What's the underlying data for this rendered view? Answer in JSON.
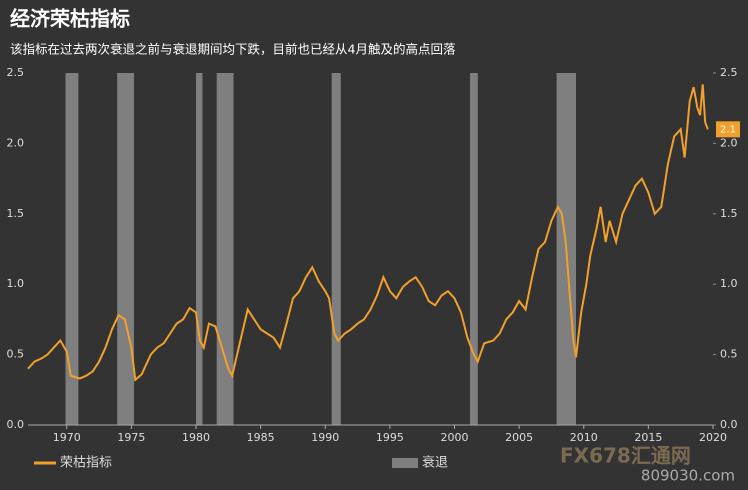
{
  "chart_data": {
    "type": "line",
    "title": "经济荣枯指标",
    "subtitle": "该指标在过去两次衰退之前与衰退期间均下跌，目前也已经从4月触及的高点回落",
    "x": [
      1967.0,
      1967.5,
      1968,
      1968.5,
      1969,
      1969.5,
      1970,
      1970.3,
      1971,
      1971.5,
      1972,
      1972.5,
      1973,
      1973.5,
      1974,
      1974.5,
      1975,
      1975.3,
      1975.8,
      1976.5,
      1977,
      1977.5,
      1978,
      1978.5,
      1979,
      1979.5,
      1980,
      1980.3,
      1980.6,
      1981,
      1981.5,
      1982,
      1982.5,
      1982.8,
      1983.3,
      1984,
      1984.5,
      1985,
      1985.5,
      1986,
      1986.5,
      1987,
      1987.5,
      1988,
      1988.5,
      1989,
      1989.5,
      1990,
      1990.3,
      1990.7,
      1991,
      1991.5,
      1992,
      1992.5,
      1993,
      1993.5,
      1994,
      1994.5,
      1995,
      1995.5,
      1996,
      1996.5,
      1997,
      1997.5,
      1998,
      1998.5,
      1999,
      1999.5,
      2000,
      2000.5,
      2001,
      2001.5,
      2001.8,
      2002.3,
      2003,
      2003.5,
      2004,
      2004.5,
      2005,
      2005.5,
      2006,
      2006.5,
      2007,
      2007.5,
      2008,
      2008.3,
      2008.6,
      2008.9,
      2009.2,
      2009.4,
      2009.8,
      2010.2,
      2010.5,
      2011,
      2011.3,
      2011.7,
      2012,
      2012.5,
      2013,
      2013.5,
      2014,
      2014.5,
      2015,
      2015.5,
      2016,
      2016.5,
      2017,
      2017.5,
      2017.8,
      2018.2,
      2018.5,
      2018.8,
      2019.0,
      2019.2,
      2019.4,
      2019.6
    ],
    "series": [
      {
        "name": "荣枯指标",
        "color": "#f2a02c",
        "values": [
          0.4,
          0.45,
          0.47,
          0.5,
          0.55,
          0.6,
          0.52,
          0.35,
          0.33,
          0.35,
          0.38,
          0.45,
          0.55,
          0.68,
          0.78,
          0.75,
          0.55,
          0.32,
          0.36,
          0.5,
          0.55,
          0.58,
          0.65,
          0.72,
          0.75,
          0.83,
          0.8,
          0.6,
          0.55,
          0.72,
          0.7,
          0.55,
          0.4,
          0.35,
          0.55,
          0.82,
          0.75,
          0.68,
          0.65,
          0.62,
          0.55,
          0.72,
          0.9,
          0.95,
          1.05,
          1.12,
          1.02,
          0.95,
          0.9,
          0.65,
          0.6,
          0.65,
          0.68,
          0.72,
          0.75,
          0.82,
          0.92,
          1.05,
          0.95,
          0.9,
          0.98,
          1.02,
          1.05,
          0.98,
          0.88,
          0.85,
          0.92,
          0.95,
          0.9,
          0.8,
          0.62,
          0.5,
          0.45,
          0.58,
          0.6,
          0.65,
          0.75,
          0.8,
          0.88,
          0.82,
          1.05,
          1.25,
          1.3,
          1.45,
          1.55,
          1.5,
          1.3,
          0.95,
          0.6,
          0.48,
          0.8,
          1.0,
          1.2,
          1.4,
          1.55,
          1.3,
          1.45,
          1.3,
          1.5,
          1.6,
          1.7,
          1.75,
          1.65,
          1.5,
          1.55,
          1.85,
          2.05,
          2.1,
          1.9,
          2.3,
          2.4,
          2.25,
          2.2,
          2.42,
          2.15,
          2.1
        ]
      }
    ],
    "last_value_label": "2.1",
    "recessions": {
      "name": "衰退",
      "color": "#7f7f7f",
      "ranges": [
        [
          1969.9,
          1970.9
        ],
        [
          1973.9,
          1975.2
        ],
        [
          1980.0,
          1980.5
        ],
        [
          1981.6,
          1982.9
        ],
        [
          1990.5,
          1991.2
        ],
        [
          2001.2,
          2001.8
        ],
        [
          2007.9,
          2009.4
        ]
      ]
    },
    "xlim": [
      1967,
      2020
    ],
    "xticks": [
      1970,
      1975,
      1980,
      1985,
      1990,
      1995,
      2000,
      2005,
      2010,
      2015,
      2020
    ],
    "ylim": [
      0,
      2.5
    ],
    "yticks": [
      {
        "value": 0,
        "label": "0.0"
      },
      0.5,
      {
        "value": 1,
        "label": "1.0"
      },
      1.5,
      {
        "value": 2,
        "label": "2.0"
      },
      2.5
    ]
  },
  "watermark": [
    "FX678汇通网",
    "809030.com"
  ]
}
